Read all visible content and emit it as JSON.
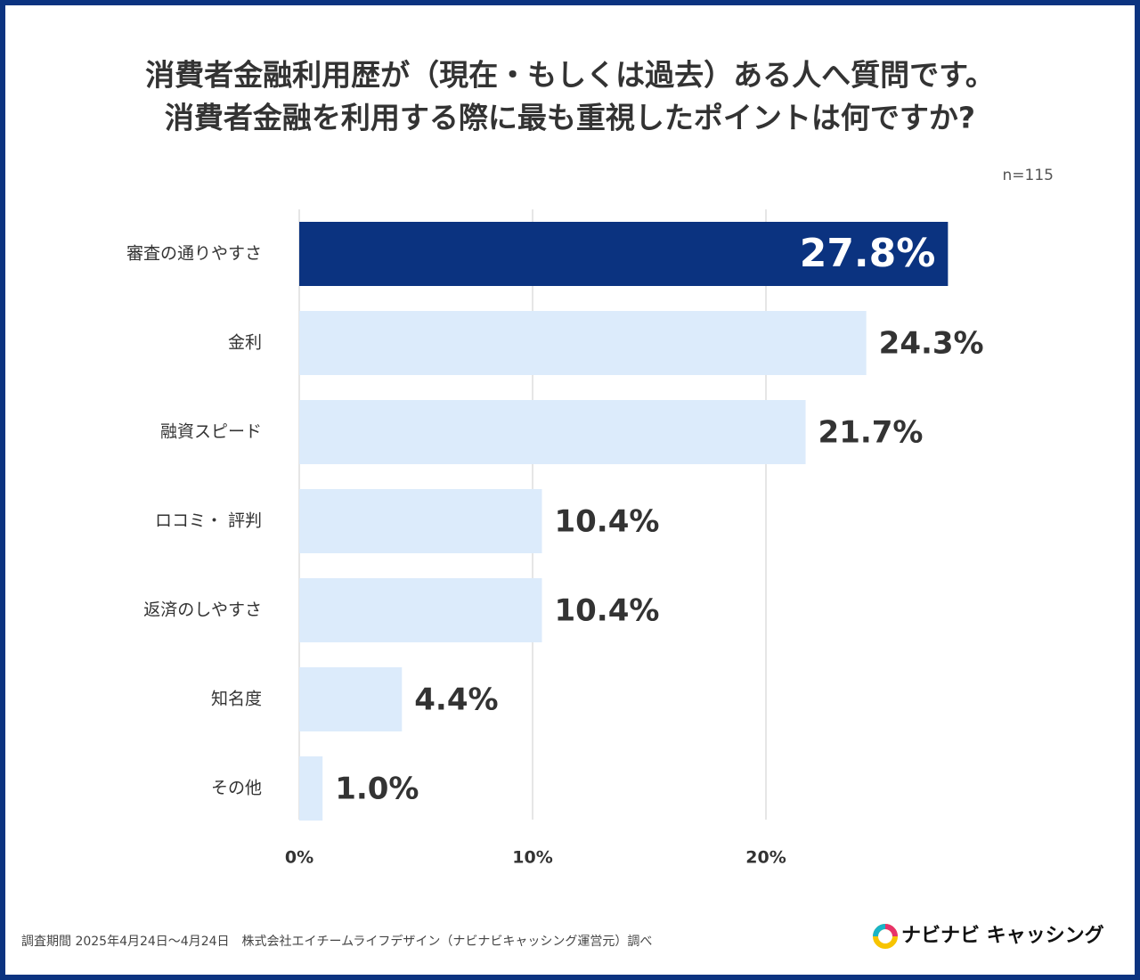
{
  "chart_data": {
    "type": "barh",
    "title_lines": [
      "消費者金融利用歴が（現在・もしくは過去）ある人へ質問です。",
      "消費者金融を利用する際に最も重視したポイントは何ですか?"
    ],
    "subtitle": "n=115",
    "categories": [
      "審査の通りやすさ",
      "金利",
      "融資スピード",
      "ロコミ・ 評判",
      "返済のしやすさ",
      "知名度",
      "その他"
    ],
    "values": [
      27.8,
      24.3,
      21.7,
      10.4,
      10.4,
      4.4,
      1.0
    ],
    "value_labels": [
      "27.8%",
      "24.3%",
      "21.7%",
      "10.4%",
      "10.4%",
      "4.4%",
      "1.0%"
    ],
    "colors": [
      "#0b3380",
      "#dcebfb",
      "#dcebfb",
      "#dcebfb",
      "#dcebfb",
      "#dcebfb",
      "#dcebfb"
    ],
    "xlim": [
      0,
      30
    ],
    "xticks": [
      {
        "value": 0,
        "label": "0%"
      },
      {
        "value": 10,
        "label": "10%"
      },
      {
        "value": 20,
        "label": "20%"
      }
    ],
    "grid": true,
    "source": "調査期間 2025年4月24日〜4月24日　株式会社エイチームライフデザイン（ナビナビキャッシング運営元）調べ",
    "logo": "ナビナビ キャッシング"
  }
}
